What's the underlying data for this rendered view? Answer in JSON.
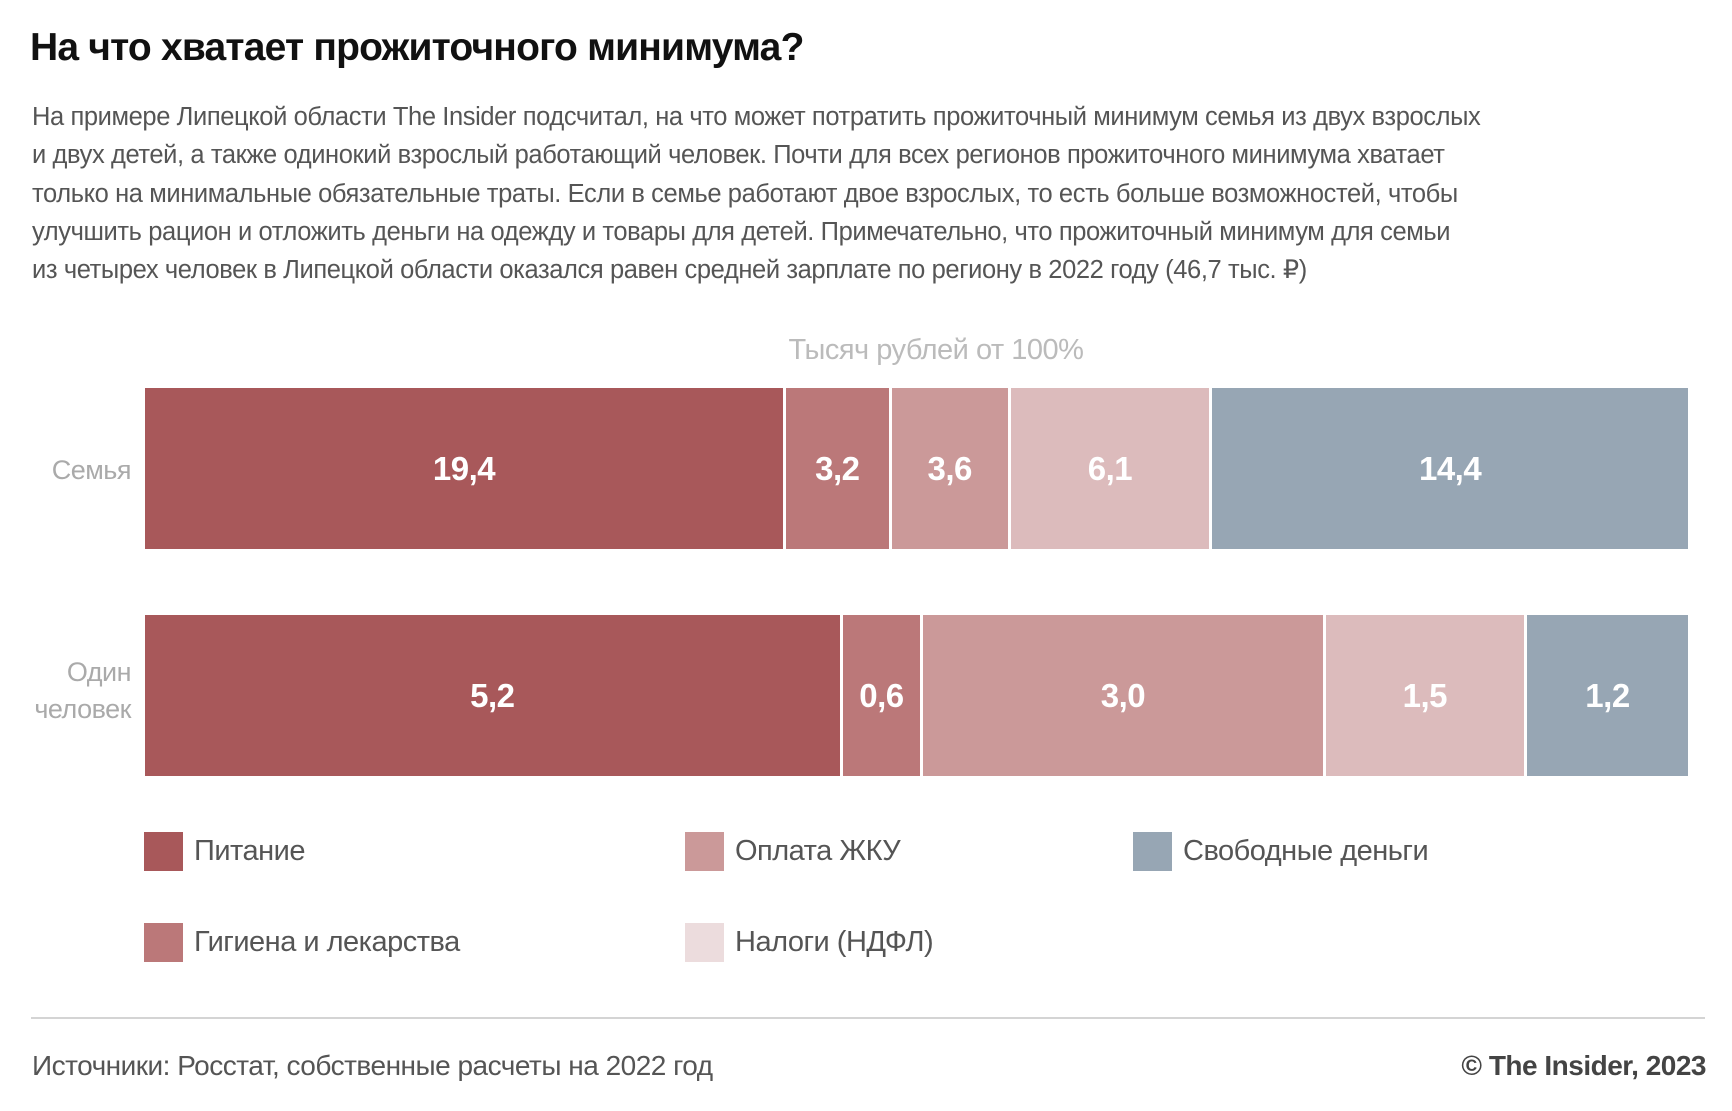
{
  "title": "На что хватает прожиточного минимума?",
  "subtitle_lines": [
    "На примере Липецкой области The Insider подсчитал, на что может потратить прожиточный минимум семья из двух взрослых",
    "и двух детей, а также одинокий взрослый работающий человек. Почти для всех регионов прожиточного минимума хватает",
    "только на минимальные обязательные траты. Если в семье работают двое взрослых, то есть больше возможностей, чтобы",
    "улучшить рацион и отложить деньги на одежду и товары для детей. Примечательно, что прожиточный минимум для семьи",
    "из четырех человек в Липецкой области оказался равен средней зарплате по региону в 2022 году (46,7 тыс. ₽)"
  ],
  "chart_data": {
    "type": "bar",
    "orientation": "horizontal",
    "stacked": "100%",
    "axis_label": "Тысяч рублей от 100%",
    "categories": [
      "Семья",
      "Один человек"
    ],
    "series": [
      {
        "name": "Питание",
        "color": "#a8585a",
        "values": [
          19.4,
          5.2
        ],
        "labels": [
          "19,4",
          "5,2"
        ]
      },
      {
        "name": "Гигиена и лекарства",
        "color": "#bb7879",
        "values": [
          3.2,
          0.6
        ],
        "labels": [
          "3,2",
          "0,6"
        ]
      },
      {
        "name": "Оплата ЖКУ",
        "color": "#cb9999",
        "values": [
          3.6,
          3.0
        ],
        "labels": [
          "3,6",
          "3,0"
        ]
      },
      {
        "name": "Налоги (НДФЛ)",
        "color": "#dcbbbc",
        "legend_color": "#ecdcdd",
        "values": [
          6.1,
          1.5
        ],
        "labels": [
          "6,1",
          "1,5"
        ]
      },
      {
        "name": "Свободные деньги",
        "color": "#97a6b4",
        "values": [
          14.4,
          1.2
        ],
        "labels": [
          "14,4",
          "1,2"
        ]
      }
    ],
    "legend_placement": "bottom",
    "grid": false
  },
  "row_labels": [
    [
      "Семья"
    ],
    [
      "Один",
      "человек"
    ]
  ],
  "footer": {
    "source": "Источники: Росстат, собственные расчеты на 2022 год",
    "credit": "© The Insider, 2023"
  }
}
